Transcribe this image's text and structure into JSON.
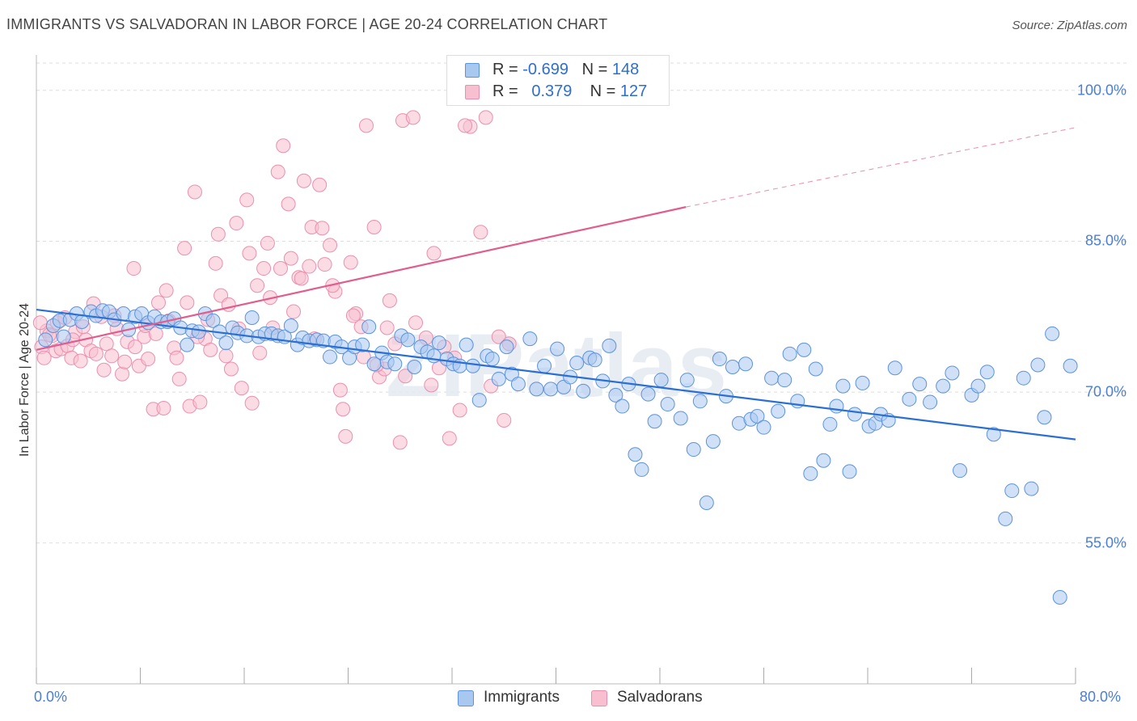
{
  "title": "IMMIGRANTS VS SALVADORAN IN LABOR FORCE | AGE 20-24 CORRELATION CHART",
  "source": "Source: ZipAtlas.com",
  "watermark": "ZIPatlas",
  "legend": {
    "row1": {
      "r_label": "R =",
      "r_value": "-0.699",
      "n_label": "N =",
      "n_value": "148"
    },
    "row2": {
      "r_label": "R =",
      "r_value": "0.379",
      "n_label": "N =",
      "n_value": "127"
    }
  },
  "bottom_legend": {
    "immigrants": "Immigrants",
    "salvadorans": "Salvadorans"
  },
  "colors": {
    "blue_fill": "#a9c8f0",
    "blue_stroke": "#5b93dc",
    "blue_line": "#2a6fd4",
    "pink_fill": "#f8bfd0",
    "pink_stroke": "#ec8fad",
    "pink_line": "#e05d8d",
    "tick_text": "#4a7fd4",
    "grid": "#dddddd"
  },
  "chart_data": {
    "type": "scatter",
    "title": "IMMIGRANTS VS SALVADORAN IN LABOR FORCE | AGE 20-24 CORRELATION CHART",
    "xlabel": "",
    "ylabel": "In Labor Force | Age 20-24",
    "x_tick_labels": [
      "0.0%",
      "80.0%"
    ],
    "y_tick_labels": [
      "100.0%",
      "85.0%",
      "70.0%",
      "55.0%"
    ],
    "y_ticks": [
      100,
      85,
      70,
      55
    ],
    "xlim": [
      0,
      80
    ],
    "ylim": [
      41,
      104
    ],
    "series": [
      {
        "name": "Immigrants",
        "R": -0.699,
        "N": 148,
        "trend": {
          "x0": 0,
          "y0": 78.2,
          "x1": 80,
          "y1": 65.3
        },
        "points": [
          [
            0.7,
            75.2
          ],
          [
            1.3,
            76.6
          ],
          [
            1.8,
            77.1
          ],
          [
            2.1,
            75.5
          ],
          [
            2.6,
            77.2
          ],
          [
            3.1,
            77.8
          ],
          [
            3.5,
            77.0
          ],
          [
            4.2,
            78.0
          ],
          [
            4.6,
            77.6
          ],
          [
            5.1,
            78.1
          ],
          [
            5.6,
            78.0
          ],
          [
            6.0,
            77.2
          ],
          [
            6.7,
            77.8
          ],
          [
            7.1,
            76.2
          ],
          [
            7.6,
            77.5
          ],
          [
            8.1,
            77.8
          ],
          [
            8.6,
            76.9
          ],
          [
            9.1,
            77.5
          ],
          [
            9.6,
            77.0
          ],
          [
            10.1,
            77.0
          ],
          [
            10.6,
            77.3
          ],
          [
            11.1,
            76.4
          ],
          [
            11.6,
            74.7
          ],
          [
            12.0,
            76.1
          ],
          [
            12.5,
            76.0
          ],
          [
            13.0,
            77.8
          ],
          [
            13.6,
            77.1
          ],
          [
            14.1,
            76.0
          ],
          [
            14.6,
            74.9
          ],
          [
            15.1,
            76.4
          ],
          [
            15.5,
            75.9
          ],
          [
            16.2,
            75.6
          ],
          [
            16.6,
            77.4
          ],
          [
            17.1,
            75.5
          ],
          [
            17.6,
            75.8
          ],
          [
            18.1,
            75.8
          ],
          [
            18.6,
            75.6
          ],
          [
            19.1,
            75.5
          ],
          [
            19.6,
            76.6
          ],
          [
            20.1,
            74.7
          ],
          [
            20.5,
            75.4
          ],
          [
            21.0,
            75.1
          ],
          [
            21.6,
            75.2
          ],
          [
            22.1,
            75.1
          ],
          [
            22.6,
            73.5
          ],
          [
            23.0,
            75.0
          ],
          [
            23.5,
            74.5
          ],
          [
            24.1,
            73.4
          ],
          [
            24.5,
            74.5
          ],
          [
            25.1,
            74.7
          ],
          [
            25.6,
            76.5
          ],
          [
            26.0,
            72.8
          ],
          [
            26.6,
            73.9
          ],
          [
            27.0,
            73.0
          ],
          [
            27.6,
            72.8
          ],
          [
            28.1,
            75.6
          ],
          [
            28.6,
            75.2
          ],
          [
            29.1,
            72.5
          ],
          [
            29.6,
            74.5
          ],
          [
            30.1,
            74.0
          ],
          [
            30.6,
            73.6
          ],
          [
            31.0,
            74.9
          ],
          [
            31.6,
            73.3
          ],
          [
            32.1,
            72.8
          ],
          [
            32.6,
            72.6
          ],
          [
            33.1,
            74.7
          ],
          [
            33.6,
            72.6
          ],
          [
            34.1,
            69.2
          ],
          [
            34.7,
            73.6
          ],
          [
            35.1,
            73.3
          ],
          [
            35.6,
            71.3
          ],
          [
            36.2,
            74.5
          ],
          [
            36.6,
            71.8
          ],
          [
            37.1,
            70.8
          ],
          [
            38.0,
            75.3
          ],
          [
            38.5,
            70.3
          ],
          [
            39.1,
            72.6
          ],
          [
            39.6,
            70.3
          ],
          [
            40.1,
            74.3
          ],
          [
            40.6,
            70.5
          ],
          [
            41.1,
            71.5
          ],
          [
            41.6,
            72.9
          ],
          [
            42.1,
            70.1
          ],
          [
            42.6,
            73.4
          ],
          [
            43.0,
            73.2
          ],
          [
            43.6,
            71.1
          ],
          [
            44.1,
            74.6
          ],
          [
            44.6,
            69.7
          ],
          [
            45.1,
            68.6
          ],
          [
            45.6,
            70.8
          ],
          [
            46.1,
            63.8
          ],
          [
            46.6,
            62.3
          ],
          [
            47.1,
            69.8
          ],
          [
            47.6,
            67.1
          ],
          [
            48.1,
            71.2
          ],
          [
            48.6,
            68.8
          ],
          [
            49.6,
            67.4
          ],
          [
            50.1,
            71.2
          ],
          [
            50.6,
            64.3
          ],
          [
            51.1,
            69.1
          ],
          [
            51.6,
            59.0
          ],
          [
            52.1,
            65.1
          ],
          [
            52.6,
            73.3
          ],
          [
            53.1,
            69.6
          ],
          [
            53.6,
            72.5
          ],
          [
            54.1,
            66.9
          ],
          [
            54.6,
            72.8
          ],
          [
            55.0,
            67.3
          ],
          [
            55.5,
            67.6
          ],
          [
            56.0,
            66.5
          ],
          [
            56.6,
            71.4
          ],
          [
            57.1,
            68.1
          ],
          [
            57.6,
            71.2
          ],
          [
            58.0,
            73.8
          ],
          [
            58.6,
            69.1
          ],
          [
            59.1,
            74.2
          ],
          [
            59.6,
            61.9
          ],
          [
            60.0,
            72.3
          ],
          [
            60.6,
            63.2
          ],
          [
            61.1,
            66.8
          ],
          [
            61.6,
            68.6
          ],
          [
            62.1,
            70.6
          ],
          [
            62.6,
            62.1
          ],
          [
            63.0,
            67.8
          ],
          [
            63.6,
            70.9
          ],
          [
            64.1,
            66.6
          ],
          [
            64.6,
            66.9
          ],
          [
            65.0,
            67.8
          ],
          [
            65.6,
            67.2
          ],
          [
            66.1,
            72.4
          ],
          [
            67.2,
            69.3
          ],
          [
            68.0,
            70.8
          ],
          [
            68.8,
            69.0
          ],
          [
            69.8,
            70.6
          ],
          [
            70.5,
            71.9
          ],
          [
            71.1,
            62.2
          ],
          [
            72.0,
            69.7
          ],
          [
            72.5,
            70.6
          ],
          [
            73.2,
            72.0
          ],
          [
            73.7,
            65.8
          ],
          [
            74.6,
            57.4
          ],
          [
            75.1,
            60.2
          ],
          [
            76.0,
            71.4
          ],
          [
            76.6,
            60.4
          ],
          [
            77.1,
            72.7
          ],
          [
            77.6,
            67.5
          ],
          [
            78.2,
            75.8
          ],
          [
            78.8,
            49.6
          ],
          [
            79.6,
            72.6
          ]
        ]
      },
      {
        "name": "Salvadorans",
        "R": 0.379,
        "N": 127,
        "trend": {
          "x0": 0,
          "y0": 74.2,
          "x1": 50,
          "y1": 88.4,
          "dashed_to": {
            "x": 80,
            "y": 96.3
          }
        },
        "points": [
          [
            0.4,
            74.5
          ],
          [
            0.8,
            76.1
          ],
          [
            1.2,
            75.6
          ],
          [
            1.5,
            74.1
          ],
          [
            1.9,
            74.3
          ],
          [
            2.4,
            74.6
          ],
          [
            2.7,
            73.4
          ],
          [
            3.0,
            76.0
          ],
          [
            3.4,
            73.1
          ],
          [
            3.8,
            75.2
          ],
          [
            4.2,
            74.1
          ],
          [
            4.6,
            73.8
          ],
          [
            5.0,
            77.5
          ],
          [
            5.4,
            74.8
          ],
          [
            5.8,
            73.6
          ],
          [
            6.2,
            76.3
          ],
          [
            6.6,
            71.8
          ],
          [
            7.0,
            75.0
          ],
          [
            7.5,
            82.3
          ],
          [
            7.9,
            72.6
          ],
          [
            8.3,
            75.5
          ],
          [
            8.6,
            73.3
          ],
          [
            9.0,
            68.3
          ],
          [
            9.4,
            78.9
          ],
          [
            9.8,
            68.4
          ],
          [
            10.2,
            77.1
          ],
          [
            10.6,
            74.4
          ],
          [
            11.0,
            71.3
          ],
          [
            11.4,
            84.3
          ],
          [
            11.8,
            68.6
          ],
          [
            12.2,
            89.9
          ],
          [
            12.6,
            69.0
          ],
          [
            13.0,
            75.3
          ],
          [
            13.4,
            74.2
          ],
          [
            13.8,
            82.8
          ],
          [
            14.2,
            79.6
          ],
          [
            14.6,
            73.6
          ],
          [
            15.0,
            72.3
          ],
          [
            15.4,
            86.8
          ],
          [
            15.8,
            70.4
          ],
          [
            16.2,
            89.1
          ],
          [
            16.6,
            68.9
          ],
          [
            17.0,
            80.6
          ],
          [
            17.5,
            82.3
          ],
          [
            17.8,
            84.8
          ],
          [
            18.2,
            76.4
          ],
          [
            18.6,
            91.9
          ],
          [
            19.0,
            94.5
          ],
          [
            19.4,
            88.7
          ],
          [
            19.8,
            78.0
          ],
          [
            20.2,
            81.4
          ],
          [
            20.6,
            91.0
          ],
          [
            21.0,
            82.5
          ],
          [
            21.4,
            75.3
          ],
          [
            21.8,
            90.6
          ],
          [
            22.2,
            82.7
          ],
          [
            22.6,
            84.6
          ],
          [
            23.0,
            80.0
          ],
          [
            23.4,
            70.2
          ],
          [
            23.8,
            65.6
          ],
          [
            24.2,
            82.9
          ],
          [
            24.6,
            77.8
          ],
          [
            25.0,
            76.5
          ],
          [
            25.4,
            96.5
          ],
          [
            26.0,
            86.4
          ],
          [
            26.4,
            71.5
          ],
          [
            26.8,
            72.3
          ],
          [
            27.2,
            79.1
          ],
          [
            27.6,
            74.8
          ],
          [
            28.0,
            65.0
          ],
          [
            28.4,
            71.6
          ],
          [
            29.2,
            76.9
          ],
          [
            30.0,
            75.4
          ],
          [
            30.6,
            83.8
          ],
          [
            31.0,
            72.4
          ],
          [
            31.8,
            65.4
          ],
          [
            32.2,
            73.4
          ],
          [
            32.6,
            68.2
          ],
          [
            33.4,
            96.4
          ],
          [
            34.2,
            85.9
          ],
          [
            34.6,
            97.3
          ],
          [
            35.0,
            70.6
          ],
          [
            35.6,
            75.5
          ],
          [
            36.4,
            74.8
          ],
          [
            0.3,
            76.9
          ],
          [
            0.6,
            73.4
          ],
          [
            1.0,
            75.7
          ],
          [
            1.6,
            76.9
          ],
          [
            2.2,
            77.4
          ],
          [
            2.8,
            75.2
          ],
          [
            3.6,
            76.5
          ],
          [
            4.4,
            78.8
          ],
          [
            5.2,
            72.2
          ],
          [
            6.0,
            77.6
          ],
          [
            6.8,
            73.0
          ],
          [
            7.6,
            74.5
          ],
          [
            8.4,
            76.6
          ],
          [
            9.2,
            75.8
          ],
          [
            10.0,
            80.1
          ],
          [
            10.8,
            73.4
          ],
          [
            11.6,
            78.9
          ],
          [
            12.4,
            75.5
          ],
          [
            13.2,
            77.2
          ],
          [
            14.0,
            85.7
          ],
          [
            14.8,
            78.7
          ],
          [
            15.6,
            76.3
          ],
          [
            16.4,
            83.8
          ],
          [
            17.2,
            73.9
          ],
          [
            18.0,
            79.4
          ],
          [
            18.8,
            82.3
          ],
          [
            19.6,
            83.3
          ],
          [
            20.4,
            81.3
          ],
          [
            21.2,
            86.4
          ],
          [
            22.0,
            86.3
          ],
          [
            22.8,
            80.6
          ],
          [
            23.6,
            68.3
          ],
          [
            24.4,
            77.6
          ],
          [
            25.2,
            73.5
          ],
          [
            26.2,
            72.7
          ],
          [
            27.0,
            76.4
          ],
          [
            28.2,
            97.0
          ],
          [
            29.0,
            97.3
          ],
          [
            30.4,
            70.7
          ],
          [
            31.4,
            74.5
          ],
          [
            33.0,
            96.5
          ],
          [
            36.0,
            67.2
          ]
        ]
      }
    ]
  }
}
